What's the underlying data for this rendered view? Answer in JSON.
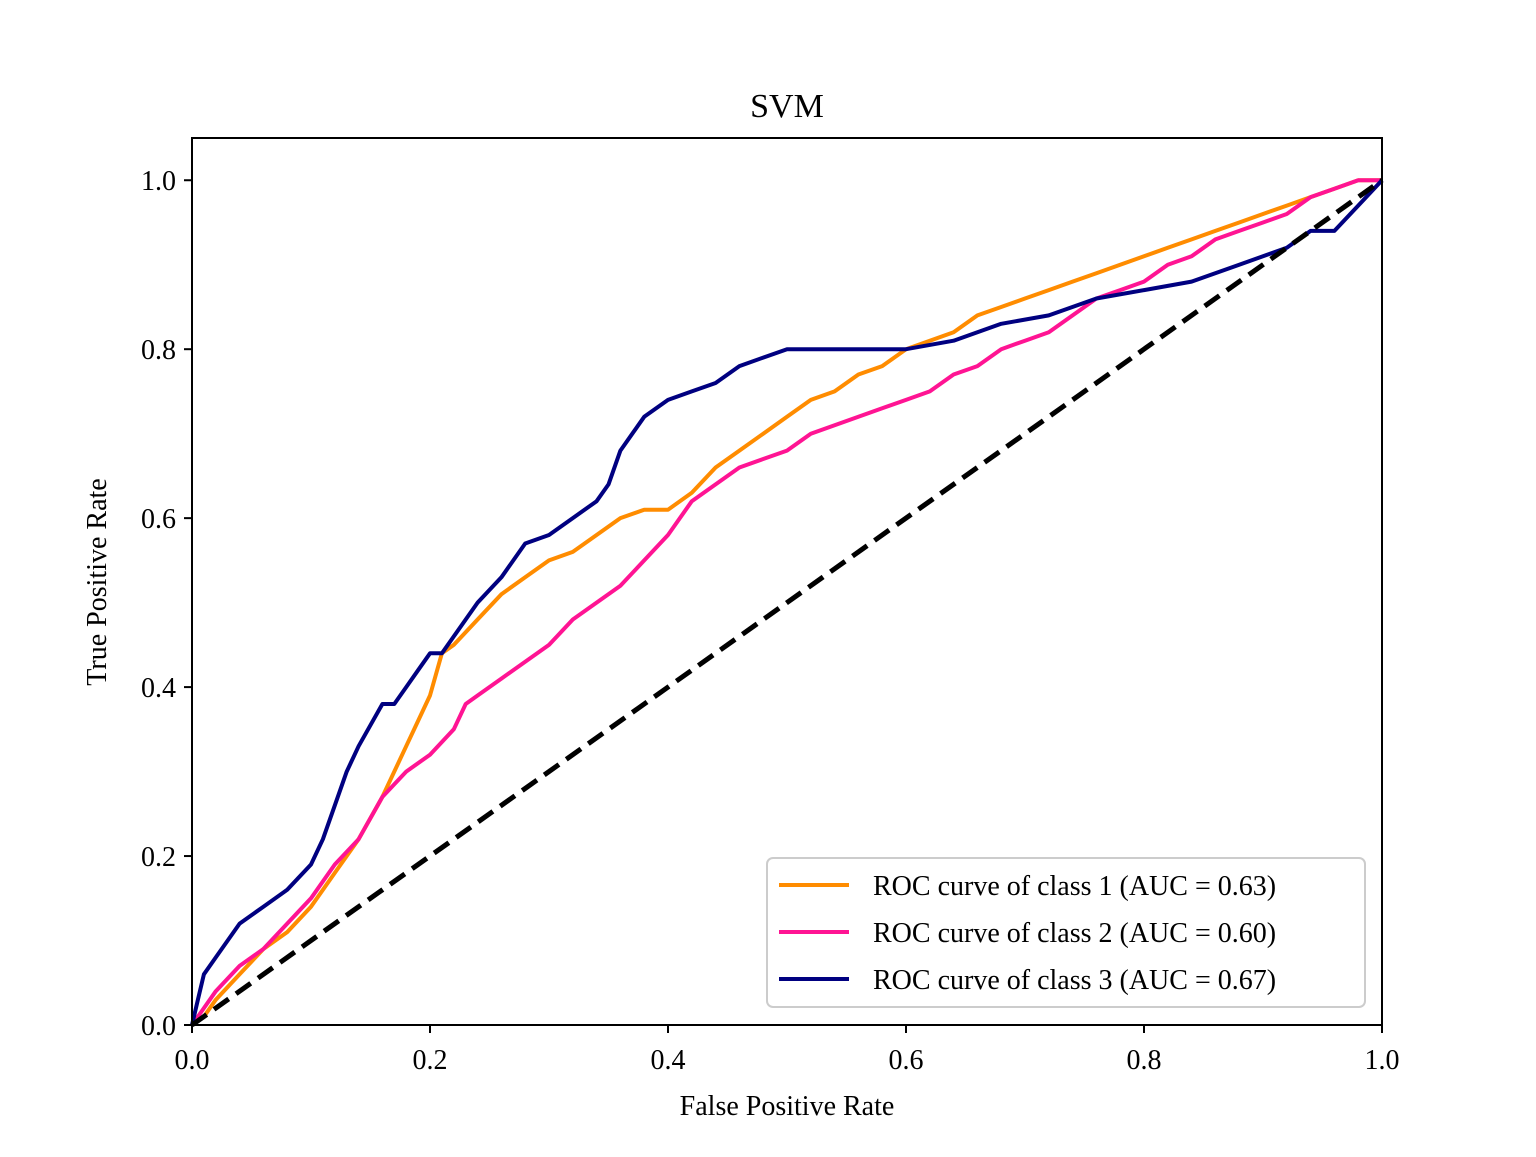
{
  "chart_data": {
    "type": "line",
    "title": "SVM",
    "xlabel": "False Positive Rate",
    "ylabel": "True Positive Rate",
    "xlim": [
      0.0,
      1.0
    ],
    "ylim": [
      0.0,
      1.05
    ],
    "xticks": [
      0.0,
      0.2,
      0.4,
      0.6,
      0.8,
      1.0
    ],
    "yticks": [
      0.0,
      0.2,
      0.4,
      0.6,
      0.8,
      1.0
    ],
    "xtick_labels": [
      "0.0",
      "0.2",
      "0.4",
      "0.6",
      "0.8",
      "1.0"
    ],
    "ytick_labels": [
      "0.0",
      "0.2",
      "0.4",
      "0.6",
      "0.8",
      "1.0"
    ],
    "grid": false,
    "legend_position": "lower-right",
    "series": [
      {
        "name": "ROC curve of class 1 (AUC = 0.63)",
        "color": "#ff8c00",
        "x": [
          0.0,
          0.01,
          0.02,
          0.04,
          0.06,
          0.08,
          0.1,
          0.12,
          0.14,
          0.16,
          0.18,
          0.19,
          0.2,
          0.21,
          0.22,
          0.24,
          0.26,
          0.28,
          0.3,
          0.32,
          0.34,
          0.36,
          0.38,
          0.4,
          0.42,
          0.44,
          0.46,
          0.48,
          0.5,
          0.52,
          0.54,
          0.56,
          0.58,
          0.6,
          0.62,
          0.64,
          0.66,
          0.68,
          0.7,
          0.72,
          0.74,
          0.76,
          0.78,
          0.8,
          0.82,
          0.84,
          0.86,
          0.88,
          0.9,
          0.92,
          0.94,
          0.96,
          0.98,
          1.0
        ],
        "y": [
          0.0,
          0.01,
          0.03,
          0.06,
          0.09,
          0.11,
          0.14,
          0.18,
          0.22,
          0.27,
          0.33,
          0.36,
          0.39,
          0.44,
          0.45,
          0.48,
          0.51,
          0.53,
          0.55,
          0.56,
          0.58,
          0.6,
          0.61,
          0.61,
          0.63,
          0.66,
          0.68,
          0.7,
          0.72,
          0.74,
          0.75,
          0.77,
          0.78,
          0.8,
          0.81,
          0.82,
          0.84,
          0.85,
          0.86,
          0.87,
          0.88,
          0.89,
          0.9,
          0.91,
          0.92,
          0.93,
          0.94,
          0.95,
          0.96,
          0.97,
          0.98,
          0.99,
          1.0,
          1.0
        ]
      },
      {
        "name": "ROC curve of class 2 (AUC = 0.60)",
        "color": "#ff1493",
        "x": [
          0.0,
          0.01,
          0.02,
          0.04,
          0.06,
          0.08,
          0.1,
          0.12,
          0.14,
          0.16,
          0.18,
          0.2,
          0.22,
          0.23,
          0.24,
          0.26,
          0.28,
          0.3,
          0.32,
          0.34,
          0.36,
          0.38,
          0.4,
          0.42,
          0.44,
          0.46,
          0.48,
          0.5,
          0.52,
          0.54,
          0.56,
          0.58,
          0.6,
          0.62,
          0.64,
          0.66,
          0.68,
          0.7,
          0.72,
          0.74,
          0.76,
          0.78,
          0.8,
          0.82,
          0.84,
          0.86,
          0.88,
          0.9,
          0.92,
          0.94,
          0.96,
          0.98,
          1.0
        ],
        "y": [
          0.0,
          0.02,
          0.04,
          0.07,
          0.09,
          0.12,
          0.15,
          0.19,
          0.22,
          0.27,
          0.3,
          0.32,
          0.35,
          0.38,
          0.39,
          0.41,
          0.43,
          0.45,
          0.48,
          0.5,
          0.52,
          0.55,
          0.58,
          0.62,
          0.64,
          0.66,
          0.67,
          0.68,
          0.7,
          0.71,
          0.72,
          0.73,
          0.74,
          0.75,
          0.77,
          0.78,
          0.8,
          0.81,
          0.82,
          0.84,
          0.86,
          0.87,
          0.88,
          0.9,
          0.91,
          0.93,
          0.94,
          0.95,
          0.96,
          0.98,
          0.99,
          1.0,
          1.0
        ]
      },
      {
        "name": "ROC curve of class 3 (AUC = 0.67)",
        "color": "#000080",
        "x": [
          0.0,
          0.005,
          0.01,
          0.02,
          0.03,
          0.04,
          0.06,
          0.08,
          0.1,
          0.11,
          0.12,
          0.13,
          0.14,
          0.16,
          0.17,
          0.18,
          0.19,
          0.2,
          0.21,
          0.22,
          0.24,
          0.26,
          0.28,
          0.3,
          0.32,
          0.34,
          0.35,
          0.36,
          0.37,
          0.38,
          0.4,
          0.42,
          0.44,
          0.46,
          0.48,
          0.5,
          0.52,
          0.56,
          0.6,
          0.64,
          0.68,
          0.72,
          0.76,
          0.8,
          0.84,
          0.88,
          0.92,
          0.94,
          0.96,
          0.98,
          1.0
        ],
        "y": [
          0.0,
          0.03,
          0.06,
          0.08,
          0.1,
          0.12,
          0.14,
          0.16,
          0.19,
          0.22,
          0.26,
          0.3,
          0.33,
          0.38,
          0.38,
          0.4,
          0.42,
          0.44,
          0.44,
          0.46,
          0.5,
          0.53,
          0.57,
          0.58,
          0.6,
          0.62,
          0.64,
          0.68,
          0.7,
          0.72,
          0.74,
          0.75,
          0.76,
          0.78,
          0.79,
          0.8,
          0.8,
          0.8,
          0.8,
          0.81,
          0.83,
          0.84,
          0.86,
          0.87,
          0.88,
          0.9,
          0.92,
          0.94,
          0.94,
          0.97,
          1.0
        ]
      },
      {
        "name": "",
        "color": "#000000",
        "dashed": true,
        "x": [
          0.0,
          1.0
        ],
        "y": [
          0.0,
          1.0
        ]
      }
    ]
  }
}
